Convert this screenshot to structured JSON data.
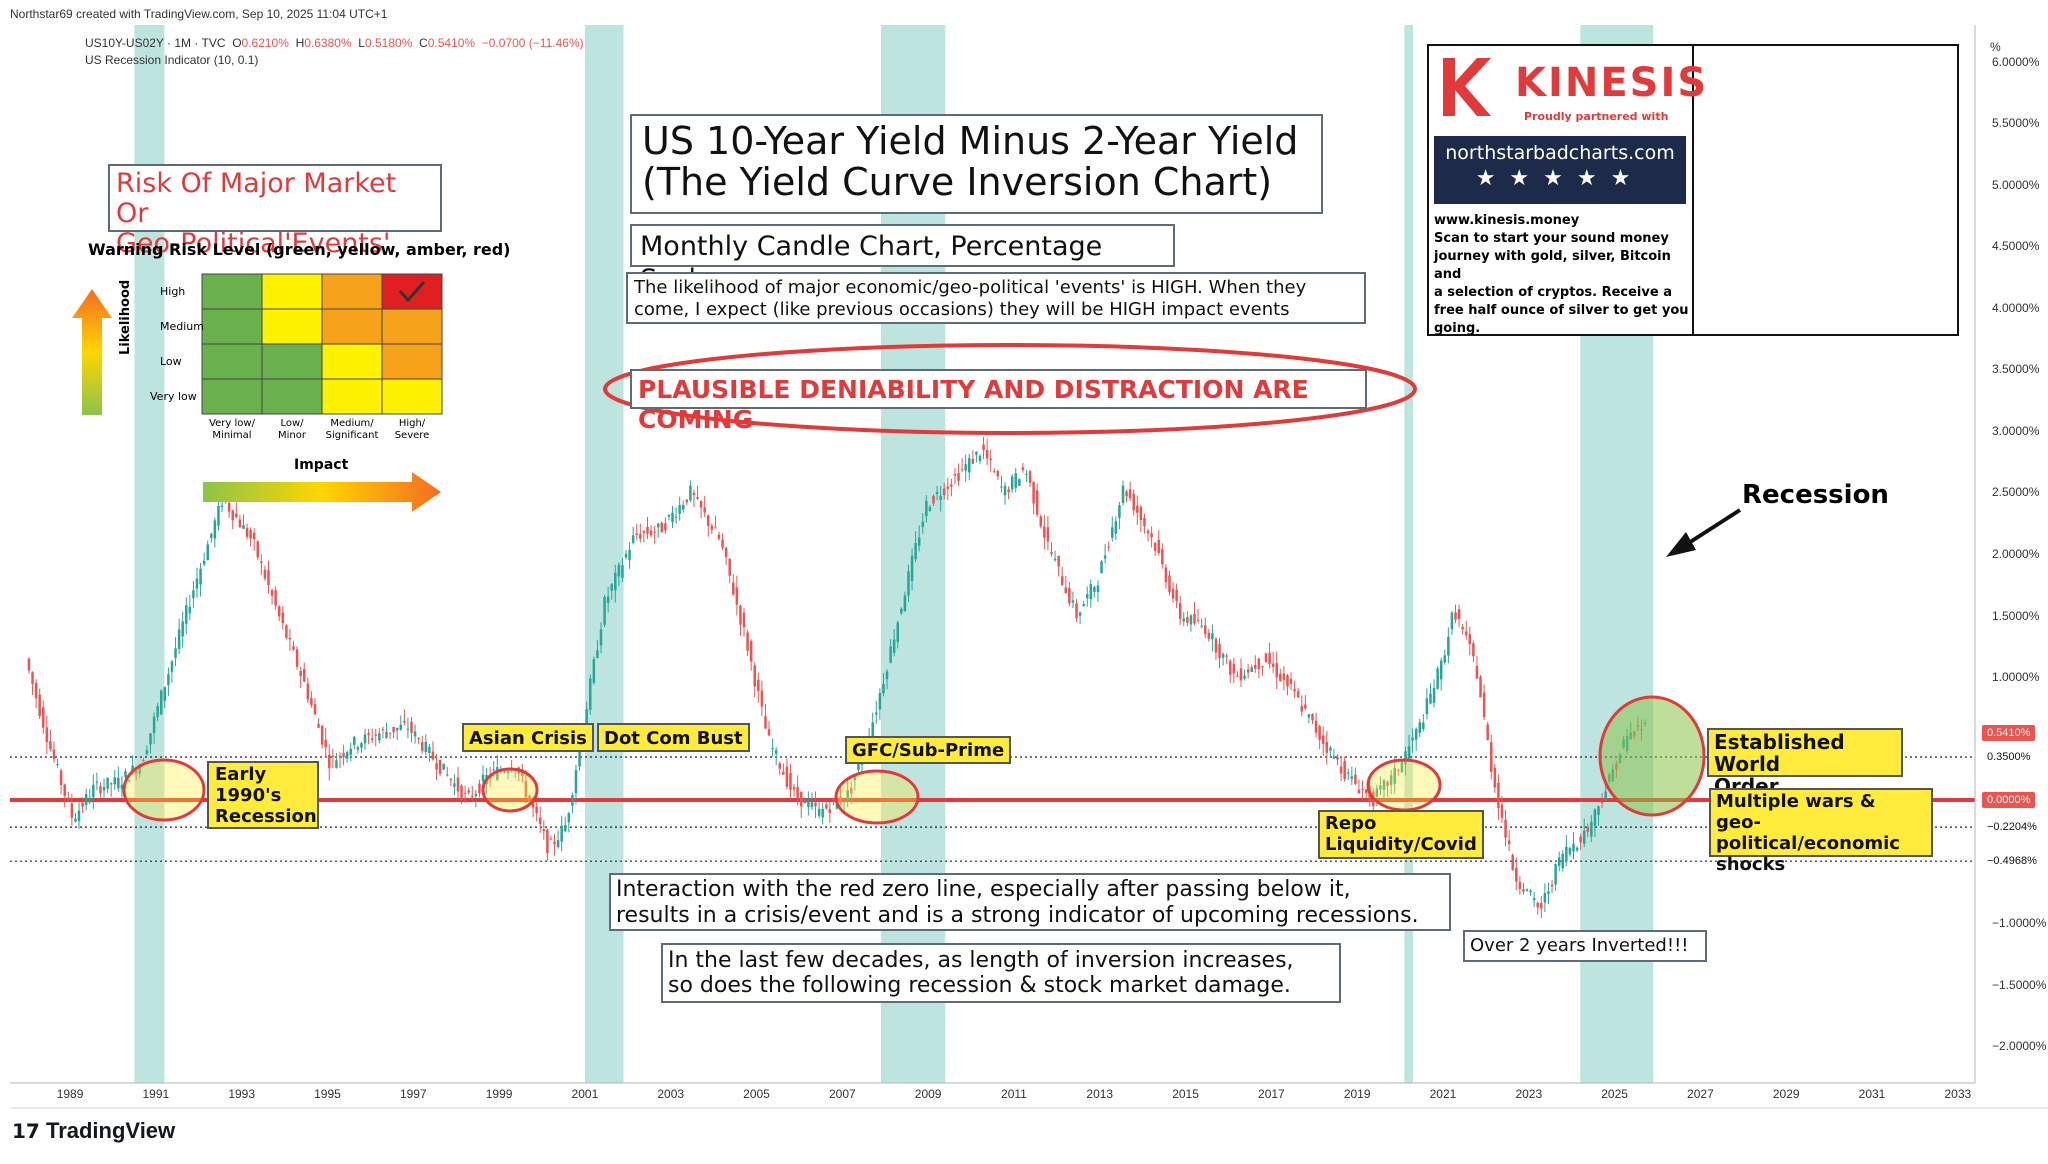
{
  "header": {
    "attribution": "Northstar69 created with TradingView.com, Sep 10, 2025 11:04 UTC+1",
    "symbol_line": "US10Y-US02Y · 1M · TVC",
    "ohlc": {
      "o_label": "O",
      "o": "0.6210%",
      "h_label": "H",
      "h": "0.6380%",
      "l_label": "L",
      "l": "0.5180%",
      "c_label": "C",
      "c": "0.5410%",
      "chg": "−0.0700 (−11.46%)"
    },
    "indicator": "US Recession Indicator (10, 0.1)"
  },
  "texts": {
    "title_line1": "US 10-Year Yield Minus 2-Year Yield",
    "title_line2": "(The Yield Curve Inversion Chart)",
    "subtitle": "Monthly Candle Chart, Percentage Scale",
    "likelihood_l1": "The likelihood of major economic/geo-political 'events' is HIGH. When they",
    "likelihood_l2": "come, I expect (like previous occasions) they will be HIGH impact events",
    "plausible": "PLAUSIBLE DENIABILITY AND DISTRACTION ARE COMING",
    "risk_l1": "Risk Of Major Market Or",
    "risk_l2": "Geo-Political'Events'",
    "warning": "Warning Risk Level (green, yellow, amber, red)",
    "interaction_l1": "Interaction with the red zero line, especially after passing below it,",
    "interaction_l2": "results in a crisis/event and is a strong indicator of upcoming recessions.",
    "decades_l1": "In the last few decades, as length of inversion increases,",
    "decades_l2": "so does the following recession & stock market damage.",
    "recession": "Recession",
    "over2": "Over 2 years Inverted!!!",
    "tradingview": "TradingView"
  },
  "labels": {
    "early_l1": "Early",
    "early_l2": "1990's",
    "early_l3": "Recession",
    "asian": "Asian Crisis",
    "dotcom": "Dot Com Bust",
    "gfc": "GFC/Sub-Prime",
    "repo_l1": "Repo",
    "repo_l2": "Liquidity/Covid",
    "world_l1": "Established World",
    "world_l2": "Order Breakdown",
    "wars_l1": "Multiple wars &",
    "wars_l2": "geo-political/economic",
    "wars_l3": "shocks"
  },
  "risk_matrix": {
    "rows": [
      "High",
      "Medium",
      "Low",
      "Very low"
    ],
    "cols": [
      [
        "Very low/",
        "Minimal"
      ],
      [
        "Low/",
        "Minor"
      ],
      [
        "Medium/",
        "Significant"
      ],
      [
        "High/",
        "Severe"
      ]
    ],
    "ylabel": "Likelihood",
    "xlabel": "Impact",
    "cells": [
      [
        "green",
        "yellow",
        "amber",
        "red"
      ],
      [
        "green",
        "yellow",
        "amber",
        "amber"
      ],
      [
        "green",
        "green",
        "yellow",
        "amber"
      ],
      [
        "green",
        "green",
        "yellow",
        "yellow"
      ]
    ],
    "colors": {
      "green": "#6ab04c",
      "yellow": "#fff200",
      "amber": "#f7a21b",
      "red": "#e02020"
    },
    "checked": [
      0,
      3
    ]
  },
  "ad": {
    "brand": "KINESIS",
    "partner": "Proudly partnered with",
    "site": "northstarbadcharts.com",
    "url": "www.kinesis.money",
    "lines": [
      "Scan to start your sound money",
      "journey with gold, silver, Bitcoin and",
      "a selection of cryptos. Receive a",
      "free half ounce of silver to get you",
      "going."
    ]
  },
  "yaxis": {
    "unit": "%",
    "ticks": [
      {
        "v": 6.0,
        "t": "6.0000%"
      },
      {
        "v": 5.5,
        "t": "5.5000%"
      },
      {
        "v": 5.0,
        "t": "5.0000%"
      },
      {
        "v": 4.5,
        "t": "4.5000%"
      },
      {
        "v": 4.0,
        "t": "4.0000%"
      },
      {
        "v": 3.5,
        "t": "3.5000%"
      },
      {
        "v": 3.0,
        "t": "3.0000%"
      },
      {
        "v": 2.5,
        "t": "2.5000%"
      },
      {
        "v": 2.0,
        "t": "2.0000%"
      },
      {
        "v": 1.5,
        "t": "1.5000%"
      },
      {
        "v": 1.0,
        "t": "1.0000%"
      },
      {
        "v": -1.0,
        "t": "−1.0000%"
      },
      {
        "v": -1.5,
        "t": "−1.5000%"
      },
      {
        "v": -2.0,
        "t": "−2.0000%"
      }
    ],
    "price_tags": [
      {
        "v": 0.541,
        "t": "0.5410%",
        "bg": "#ef5350",
        "fg": "#fff"
      },
      {
        "v": 0.35,
        "t": "0.3500%",
        "bg": "#fff",
        "fg": "#111"
      },
      {
        "v": 0.0,
        "t": "0.0000%",
        "bg": "#ef5350",
        "fg": "#fff"
      },
      {
        "v": -0.2204,
        "t": "−0.2204%",
        "bg": "#fff",
        "fg": "#111"
      },
      {
        "v": -0.4968,
        "t": "−0.4968%",
        "bg": "#fff",
        "fg": "#111"
      }
    ]
  },
  "xaxis": {
    "ticks": [
      "1989",
      "1991",
      "1993",
      "1995",
      "1997",
      "1999",
      "2001",
      "2003",
      "2005",
      "2007",
      "2009",
      "2011",
      "2013",
      "2015",
      "2017",
      "2019",
      "2021",
      "2023",
      "2025",
      "2027",
      "2029",
      "2031",
      "2033"
    ]
  },
  "chart_data": {
    "type": "candlestick",
    "title": "US 10-Year Yield Minus 2-Year Yield",
    "ylabel": "%",
    "ylim": [
      -2.3,
      6.3
    ],
    "xlim": [
      1987.6,
      2033.4
    ],
    "horizontal_lines": [
      0.35,
      0.0,
      -0.2204,
      -0.4968
    ],
    "recession_shading": [
      [
        1990.5,
        1991.2
      ],
      [
        2001.0,
        2001.9
      ],
      [
        2007.9,
        2009.4
      ],
      [
        2020.1,
        2020.3
      ],
      [
        2024.2,
        2025.9
      ]
    ],
    "anchors": [
      [
        1988.0,
        1.15
      ],
      [
        1988.6,
        0.4
      ],
      [
        1989.1,
        -0.15
      ],
      [
        1989.6,
        0.1
      ],
      [
        1990.2,
        0.15
      ],
      [
        1990.7,
        0.3
      ],
      [
        1991.3,
        1.0
      ],
      [
        1991.9,
        1.7
      ],
      [
        1992.6,
        2.45
      ],
      [
        1993.3,
        2.1
      ],
      [
        1993.9,
        1.5
      ],
      [
        1994.5,
        0.95
      ],
      [
        1995.1,
        0.3
      ],
      [
        1995.6,
        0.45
      ],
      [
        1996.3,
        0.55
      ],
      [
        1996.9,
        0.6
      ],
      [
        1997.6,
        0.3
      ],
      [
        1998.3,
        0.0
      ],
      [
        1998.8,
        0.2
      ],
      [
        1999.4,
        0.3
      ],
      [
        2000.2,
        -0.4
      ],
      [
        2000.6,
        -0.2
      ],
      [
        2001.0,
        0.6
      ],
      [
        2001.5,
        1.6
      ],
      [
        2002.2,
        2.15
      ],
      [
        2002.8,
        2.2
      ],
      [
        2003.5,
        2.5
      ],
      [
        2004.2,
        2.1
      ],
      [
        2004.8,
        1.3
      ],
      [
        2005.3,
        0.5
      ],
      [
        2005.9,
        0.05
      ],
      [
        2006.5,
        -0.1
      ],
      [
        2007.2,
        0.05
      ],
      [
        2007.8,
        0.7
      ],
      [
        2008.5,
        1.7
      ],
      [
        2009.0,
        2.4
      ],
      [
        2009.6,
        2.6
      ],
      [
        2010.3,
        2.85
      ],
      [
        2010.8,
        2.5
      ],
      [
        2011.3,
        2.7
      ],
      [
        2011.8,
        2.1
      ],
      [
        2012.5,
        1.5
      ],
      [
        2013.0,
        1.8
      ],
      [
        2013.6,
        2.55
      ],
      [
        2014.3,
        2.1
      ],
      [
        2014.9,
        1.5
      ],
      [
        2015.5,
        1.4
      ],
      [
        2016.2,
        1.0
      ],
      [
        2016.9,
        1.15
      ],
      [
        2017.5,
        0.9
      ],
      [
        2018.2,
        0.5
      ],
      [
        2018.8,
        0.2
      ],
      [
        2019.4,
        0.0
      ],
      [
        2019.9,
        0.2
      ],
      [
        2020.5,
        0.6
      ],
      [
        2021.0,
        1.1
      ],
      [
        2021.3,
        1.55
      ],
      [
        2021.8,
        1.1
      ],
      [
        2022.2,
        0.2
      ],
      [
        2022.7,
        -0.6
      ],
      [
        2023.3,
        -0.9
      ],
      [
        2023.8,
        -0.45
      ],
      [
        2024.4,
        -0.25
      ],
      [
        2024.9,
        0.15
      ],
      [
        2025.3,
        0.5
      ],
      [
        2025.7,
        0.6
      ]
    ],
    "last": {
      "o": 0.621,
      "h": 0.638,
      "l": 0.518,
      "c": 0.541
    }
  }
}
